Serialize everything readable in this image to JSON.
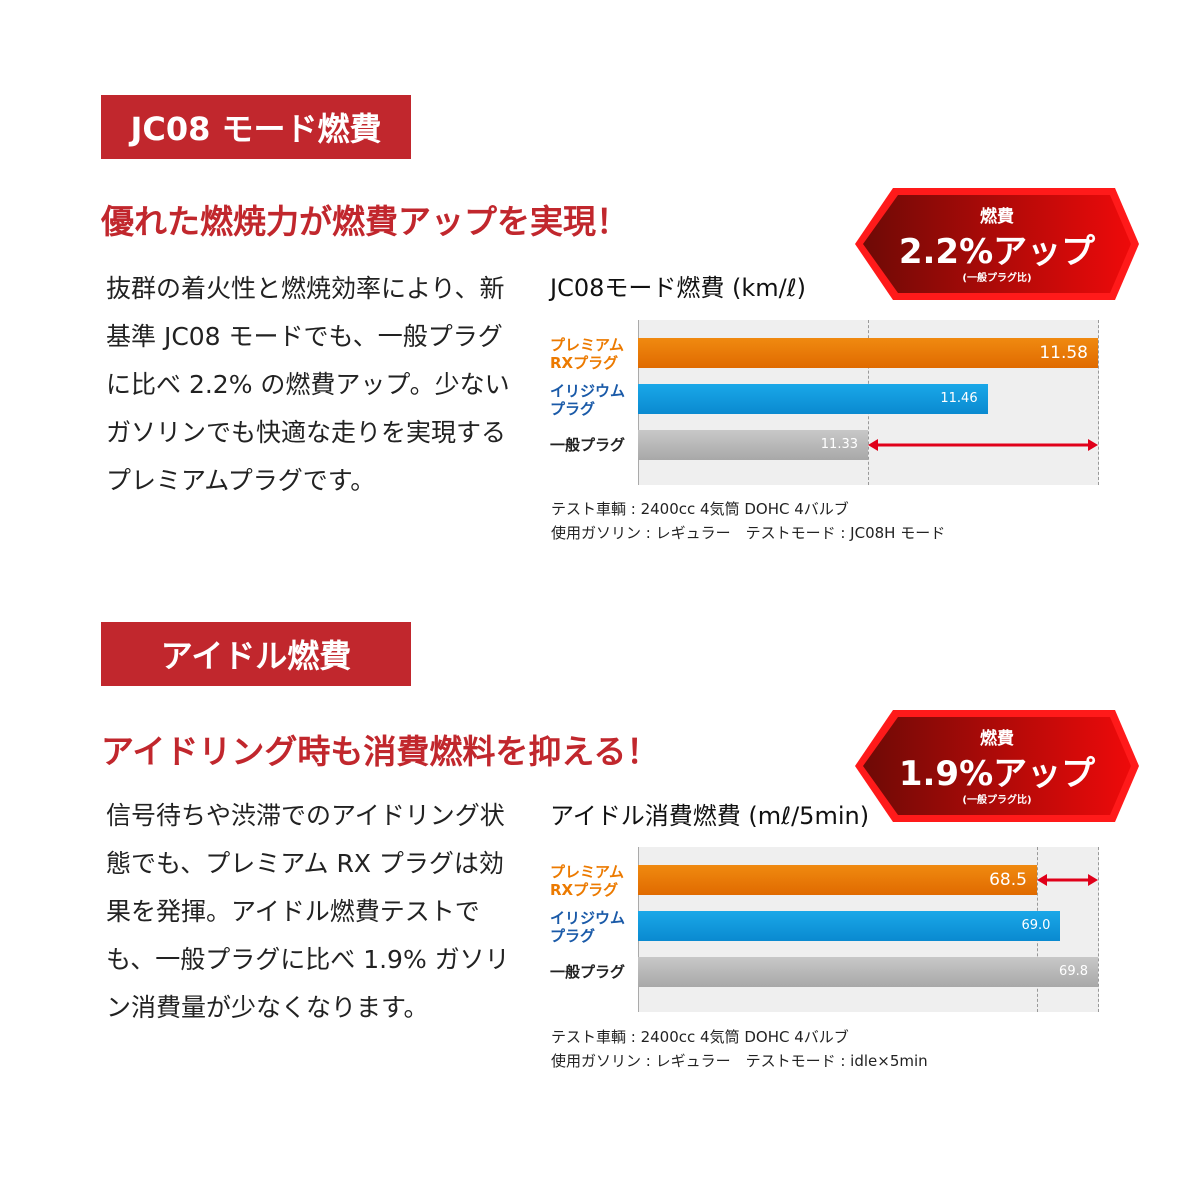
{
  "sections": [
    {
      "label": "JC08 モード燃費",
      "headline": "優れた燃焼力が燃費アップを実現！",
      "body": "抜群の着火性と燃焼効率により、新基準 JC08 モードでも、一般プラグに比べ 2.2% の燃費アップ。少ないガソリンでも快適な走りを実現するプレミアムプラグです。",
      "badge": {
        "top": "燃費",
        "main": "2.2%アップ",
        "sub": "(一般プラグ比)"
      },
      "notes": [
        "テスト車輌 : 2400cc 4気筒 DOHC 4バルブ",
        "使用ガソリン : レギュラー　テストモード : JC08H モード"
      ]
    },
    {
      "label": "アイドル燃費",
      "headline": "アイドリング時も消費燃料を抑える！",
      "body": "信号待ちや渋滞でのアイドリング状態でも、プレミアム RX プラグは効果を発揮。アイドル燃費テストでも、一般プラグに比べ 1.9% ガソリン消費量が少なくなります。",
      "badge": {
        "top": "燃費",
        "main": "1.9%アップ",
        "sub": "(一般プラグ比)"
      },
      "notes": [
        "テスト車輌 : 2400cc 4気筒 DOHC 4バルブ",
        "使用ガソリン : レギュラー　テストモード : idle×5min"
      ]
    }
  ],
  "colors": {
    "accent": "#c1272d",
    "premium": "#ec7a00",
    "iridium": "#0a9fe0",
    "standard": "#b4b4b4",
    "arrow": "#e0001a"
  },
  "chart_data": [
    {
      "type": "bar",
      "orientation": "horizontal",
      "title": "JC08モード燃費 (km/ℓ)",
      "categories": [
        "プレミアム RXプラグ",
        "イリジウム プラグ",
        "一般プラグ"
      ],
      "values": [
        11.58,
        11.46,
        11.33
      ],
      "value_labels": [
        "11.58",
        "11.46",
        "11.33"
      ],
      "xlim": [
        11.08,
        11.58
      ],
      "grid": false,
      "arrow_between": [
        11.33,
        11.58
      ]
    },
    {
      "type": "bar",
      "orientation": "horizontal",
      "title": "アイドル消費燃費 (mℓ/5min)",
      "categories": [
        "プレミアム RXプラグ",
        "イリジウム プラグ",
        "一般プラグ"
      ],
      "values": [
        68.5,
        69.0,
        69.8
      ],
      "value_labels": [
        "68.5",
        "69.0",
        "69.8"
      ],
      "xlim": [
        60,
        69.8
      ],
      "grid": false,
      "arrow_between": [
        68.5,
        69.8
      ]
    }
  ]
}
